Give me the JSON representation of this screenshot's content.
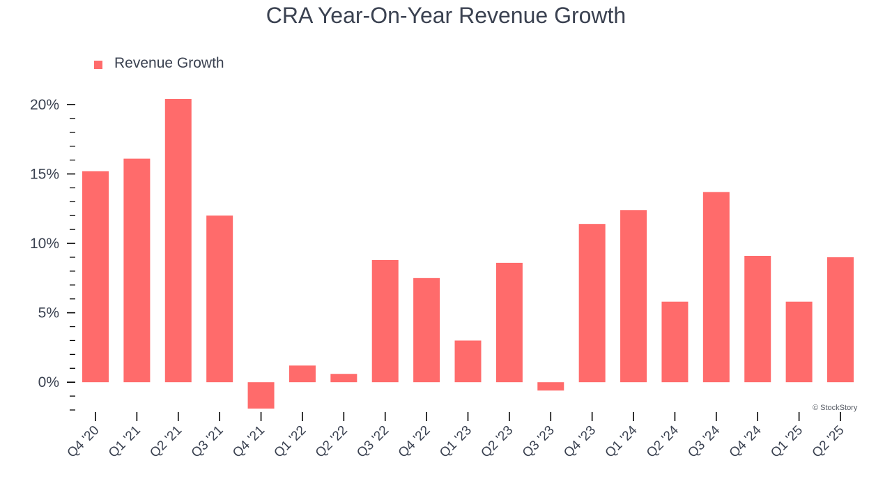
{
  "chart_data": {
    "type": "bar",
    "title": "CRA Year-On-Year Revenue Growth",
    "legend": {
      "label": "Revenue Growth",
      "position": "top-left"
    },
    "categories": [
      "Q4 '20",
      "Q1 '21",
      "Q2 '21",
      "Q3 '21",
      "Q4 '21",
      "Q1 '22",
      "Q2 '22",
      "Q3 '22",
      "Q4 '22",
      "Q1 '23",
      "Q2 '23",
      "Q3 '23",
      "Q4 '23",
      "Q1 '24",
      "Q2 '24",
      "Q3 '24",
      "Q4 '24",
      "Q1 '25",
      "Q2 '25"
    ],
    "values": [
      15.2,
      16.1,
      20.4,
      12.0,
      -1.9,
      1.2,
      0.6,
      8.8,
      7.5,
      3.0,
      8.6,
      -0.6,
      11.4,
      12.4,
      5.8,
      13.7,
      9.1,
      5.8,
      9.0
    ],
    "ylim": [
      -2.1,
      20.9
    ],
    "yticks": [
      0,
      5,
      10,
      15,
      20
    ],
    "ytick_labels": [
      "0%",
      "5%",
      "10%",
      "15%",
      "20%"
    ],
    "xlabel": "",
    "ylabel": "",
    "grid": false,
    "color": "#ff6b6b"
  },
  "watermark": "© StockStory",
  "text_color": "#3a4150"
}
